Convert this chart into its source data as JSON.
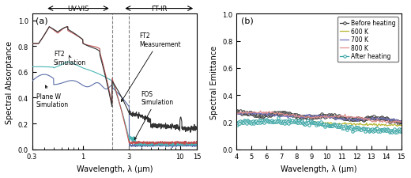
{
  "panel_a": {
    "title_label": "(a)",
    "xlabel": "Wavelength, λ (μm)",
    "ylabel": "Spectral Absorptance",
    "xlim": [
      0.3,
      15
    ],
    "ylim": [
      0.0,
      1.05
    ],
    "xticks": [
      0.3,
      1,
      3,
      10,
      15
    ],
    "xtick_labels": [
      "0.3",
      "1",
      "3",
      "10",
      "15"
    ],
    "yticks": [
      0.0,
      0.2,
      0.4,
      0.6,
      0.8,
      1.0
    ],
    "ytick_labels": [
      "0.0",
      "0.2",
      "0.4",
      "0.6",
      "0.8",
      "1.0"
    ],
    "dashed_lines": [
      2.0,
      3.0
    ],
    "curve_colors": {
      "plane_w": "#5b6fa8",
      "fos_sim": "#4ab5b5",
      "ft2_sim": "#c05050",
      "ft2_meas": "#333333"
    }
  },
  "panel_b": {
    "title_label": "(b)",
    "xlabel": "Wavelength, λ (μm)",
    "ylabel": "Spectral Emittance",
    "xlim": [
      4,
      15
    ],
    "ylim": [
      0.0,
      1.0
    ],
    "xticks": [
      4,
      5,
      6,
      7,
      8,
      9,
      10,
      11,
      12,
      13,
      14,
      15
    ],
    "yticks": [
      0.0,
      0.2,
      0.4,
      0.6,
      0.8,
      1.0
    ],
    "legend_labels": [
      "Before heating",
      "600 K",
      "700 K",
      "800 K",
      "After heating"
    ],
    "legend_colors": [
      "#333333",
      "#b5b530",
      "#7070c0",
      "#e09090",
      "#30a0a0"
    ]
  }
}
